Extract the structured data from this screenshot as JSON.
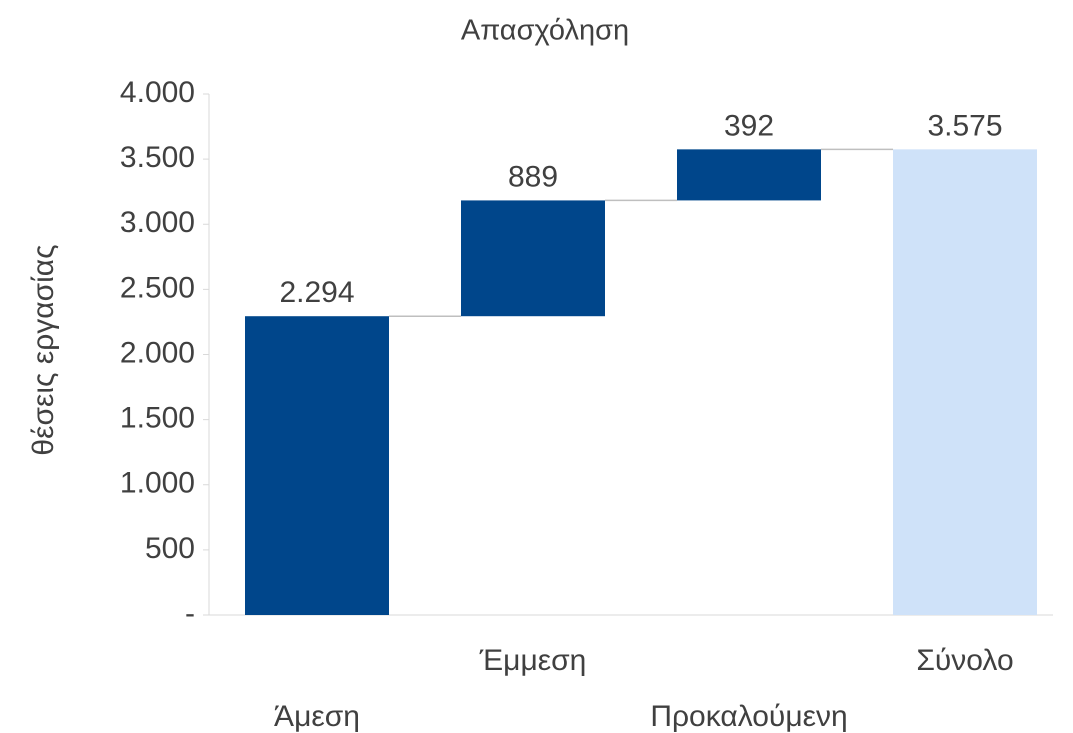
{
  "chart_data": {
    "type": "waterfall",
    "title": "Απασχόληση",
    "y_label": "θέσεις εργασίας",
    "categories": [
      "Άμεση",
      "Έμμεση",
      "Προκαλούμενη",
      "Σύνολο"
    ],
    "values": [
      2294,
      889,
      392,
      3575
    ],
    "value_labels": [
      "2.294",
      "889",
      "392",
      "3.575"
    ],
    "is_total": [
      false,
      false,
      false,
      true
    ],
    "color": "#00468b",
    "total_color": "#cfe2f9",
    "ylim": [
      0,
      4000
    ],
    "yticks": [
      {
        "value": 0,
        "label": "-"
      },
      500,
      {
        "value": 1000,
        "label": "1.000"
      },
      {
        "value": 1500,
        "label": "1.500"
      },
      {
        "value": 2000,
        "label": "2.000"
      },
      {
        "value": 2500,
        "label": "2.500"
      },
      {
        "value": 3000,
        "label": "3.000"
      },
      {
        "value": 3500,
        "label": "3.500"
      },
      {
        "value": 4000,
        "label": "4.000"
      }
    ],
    "grid": false
  }
}
